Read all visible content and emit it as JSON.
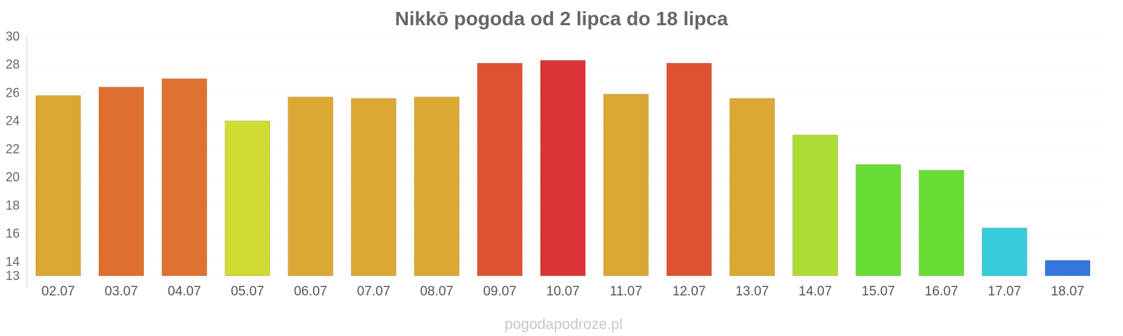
{
  "chart_data": {
    "type": "bar",
    "title": "Nikkō pogoda od 2 lipca do 18 lipca",
    "xlabel": "",
    "ylabel": "",
    "ylim": [
      13,
      30
    ],
    "yticks": [
      13,
      14,
      16,
      18,
      20,
      22,
      24,
      26,
      28,
      30
    ],
    "grid": true,
    "legend": "none",
    "categories": [
      "02.07",
      "03.07",
      "04.07",
      "05.07",
      "06.07",
      "07.07",
      "08.07",
      "09.07",
      "10.07",
      "11.07",
      "12.07",
      "13.07",
      "14.07",
      "15.07",
      "16.07",
      "17.07",
      "18.07"
    ],
    "values": [
      25.8,
      26.4,
      27.0,
      24.0,
      25.7,
      25.6,
      25.7,
      28.1,
      28.3,
      25.9,
      28.1,
      25.6,
      23.0,
      20.9,
      20.5,
      16.4,
      14.1
    ],
    "colors": [
      "#dba933",
      "#df6e31",
      "#df7131",
      "#d0dc33",
      "#dba933",
      "#dba933",
      "#dba933",
      "#dd5233",
      "#db3434",
      "#dba933",
      "#dd5233",
      "#dba933",
      "#addd35",
      "#6adc36",
      "#6adc36",
      "#37ccdc",
      "#3676dd"
    ]
  },
  "source": "pogodapodroze.pl"
}
